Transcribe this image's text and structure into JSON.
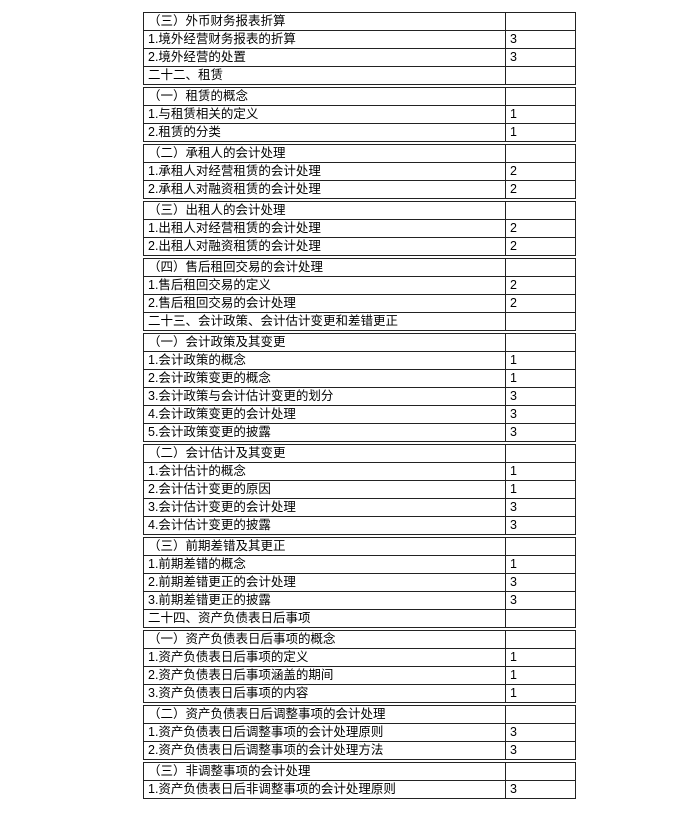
{
  "table": {
    "border_color": "#222222",
    "text_color": "#000000",
    "number_color": "#3c3c3c",
    "groups": [
      {
        "rows": [
          {
            "type": "section-header",
            "label": "（三）外币财务报表折算",
            "value": ""
          },
          {
            "type": "item",
            "label": "1.境外经营财务报表的折算",
            "value": "3"
          },
          {
            "type": "item",
            "label": "2.境外经营的处置",
            "value": "3"
          },
          {
            "type": "chapter",
            "label": "二十二、租赁",
            "value": ""
          }
        ]
      },
      {
        "rows": [
          {
            "type": "section-header",
            "label": "（一）租赁的概念",
            "value": ""
          },
          {
            "type": "item",
            "label": "1.与租赁相关的定义",
            "value": "1"
          },
          {
            "type": "item",
            "label": "2.租赁的分类",
            "value": "1"
          }
        ]
      },
      {
        "rows": [
          {
            "type": "section-header",
            "label": "（二）承租人的会计处理",
            "value": ""
          },
          {
            "type": "item",
            "label": "1.承租人对经营租赁的会计处理",
            "value": "2"
          },
          {
            "type": "item",
            "label": "2.承租人对融资租赁的会计处理",
            "value": "2"
          }
        ]
      },
      {
        "rows": [
          {
            "type": "section-header",
            "label": "（三）出租人的会计处理",
            "value": ""
          },
          {
            "type": "item",
            "label": "1.出租人对经营租赁的会计处理",
            "value": "2"
          },
          {
            "type": "item",
            "label": "2.出租人对融资租赁的会计处理",
            "value": "2"
          }
        ]
      },
      {
        "rows": [
          {
            "type": "section-header",
            "label": "（四）售后租回交易的会计处理",
            "value": ""
          },
          {
            "type": "item",
            "label": "1.售后租回交易的定义",
            "value": "2"
          },
          {
            "type": "item",
            "label": "2.售后租回交易的会计处理",
            "value": "2"
          },
          {
            "type": "chapter",
            "label": "二十三、会计政策、会计估计变更和差错更正",
            "value": ""
          }
        ]
      },
      {
        "rows": [
          {
            "type": "section-header",
            "label": "（一）会计政策及其变更",
            "value": ""
          },
          {
            "type": "item",
            "label": "1.会计政策的概念",
            "value": "1"
          },
          {
            "type": "item",
            "label": "2.会计政策变更的概念",
            "value": "1"
          },
          {
            "type": "item",
            "label": "3.会计政策与会计估计变更的划分",
            "value": "3"
          },
          {
            "type": "item",
            "label": "4.会计政策变更的会计处理",
            "value": "3"
          },
          {
            "type": "item",
            "label": "5.会计政策变更的披露",
            "value": "3"
          }
        ]
      },
      {
        "rows": [
          {
            "type": "section-header",
            "label": "（二）会计估计及其变更",
            "value": ""
          },
          {
            "type": "item",
            "label": "1.会计估计的概念",
            "value": "1"
          },
          {
            "type": "item",
            "label": "2.会计估计变更的原因",
            "value": "1"
          },
          {
            "type": "item",
            "label": "3.会计估计变更的会计处理",
            "value": "3"
          },
          {
            "type": "item",
            "label": "4.会计估计变更的披露",
            "value": "3"
          }
        ]
      },
      {
        "rows": [
          {
            "type": "section-header",
            "label": "（三）前期差错及其更正",
            "value": ""
          },
          {
            "type": "item",
            "label": "1.前期差错的概念",
            "value": "1"
          },
          {
            "type": "item",
            "label": "2.前期差错更正的会计处理",
            "value": "3"
          },
          {
            "type": "item",
            "label": "3.前期差错更正的披露",
            "value": "3"
          },
          {
            "type": "chapter",
            "label": "二十四、资产负债表日后事项",
            "value": ""
          }
        ]
      },
      {
        "rows": [
          {
            "type": "section-header",
            "label": "（一）资产负债表日后事项的概念",
            "value": ""
          },
          {
            "type": "item",
            "label": "1.资产负债表日后事项的定义",
            "value": "1"
          },
          {
            "type": "item",
            "label": "2.资产负债表日后事项涵盖的期间",
            "value": "1"
          },
          {
            "type": "item",
            "label": "3.资产负债表日后事项的内容",
            "value": "1"
          }
        ]
      },
      {
        "rows": [
          {
            "type": "section-header",
            "label": "（二）资产负债表日后调整事项的会计处理",
            "value": ""
          },
          {
            "type": "item",
            "label": "1.资产负债表日后调整事项的会计处理原则",
            "value": "3"
          },
          {
            "type": "item",
            "label": "2.资产负债表日后调整事项的会计处理方法",
            "value": "3"
          }
        ]
      },
      {
        "rows": [
          {
            "type": "section-header",
            "label": "（三）非调整事项的会计处理",
            "value": ""
          },
          {
            "type": "item",
            "label": "1.资产负债表日后非调整事项的会计处理原则",
            "value": "3"
          }
        ]
      }
    ]
  }
}
